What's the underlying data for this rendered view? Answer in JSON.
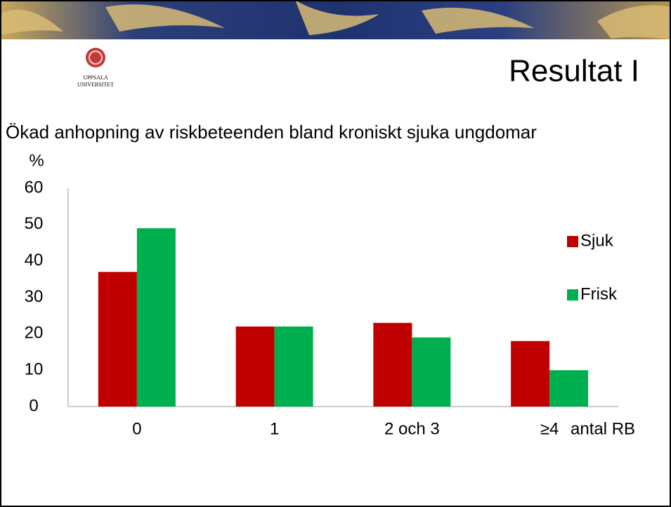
{
  "logo": {
    "line1": "UPPSALA",
    "line2": "UNIVERSITET"
  },
  "slide_title": "Resultat I",
  "chart_data": {
    "type": "bar",
    "title": "Ökad anhopning av riskbeteenden bland kroniskt sjuka ungdomar",
    "y_label": "%",
    "x_label": "antal RB",
    "categories": [
      "0",
      "1",
      "2 och 3",
      "≥4"
    ],
    "series": [
      {
        "name": "Sjuk",
        "color": "#c00000",
        "values": [
          37,
          22,
          23,
          18
        ]
      },
      {
        "name": "Frisk",
        "color": "#00b050",
        "values": [
          49,
          22,
          19,
          10
        ]
      }
    ],
    "ylim": [
      0,
      60
    ],
    "yticks": [
      0,
      10,
      20,
      30,
      40,
      50,
      60
    ],
    "grid": false,
    "legend": "right"
  }
}
